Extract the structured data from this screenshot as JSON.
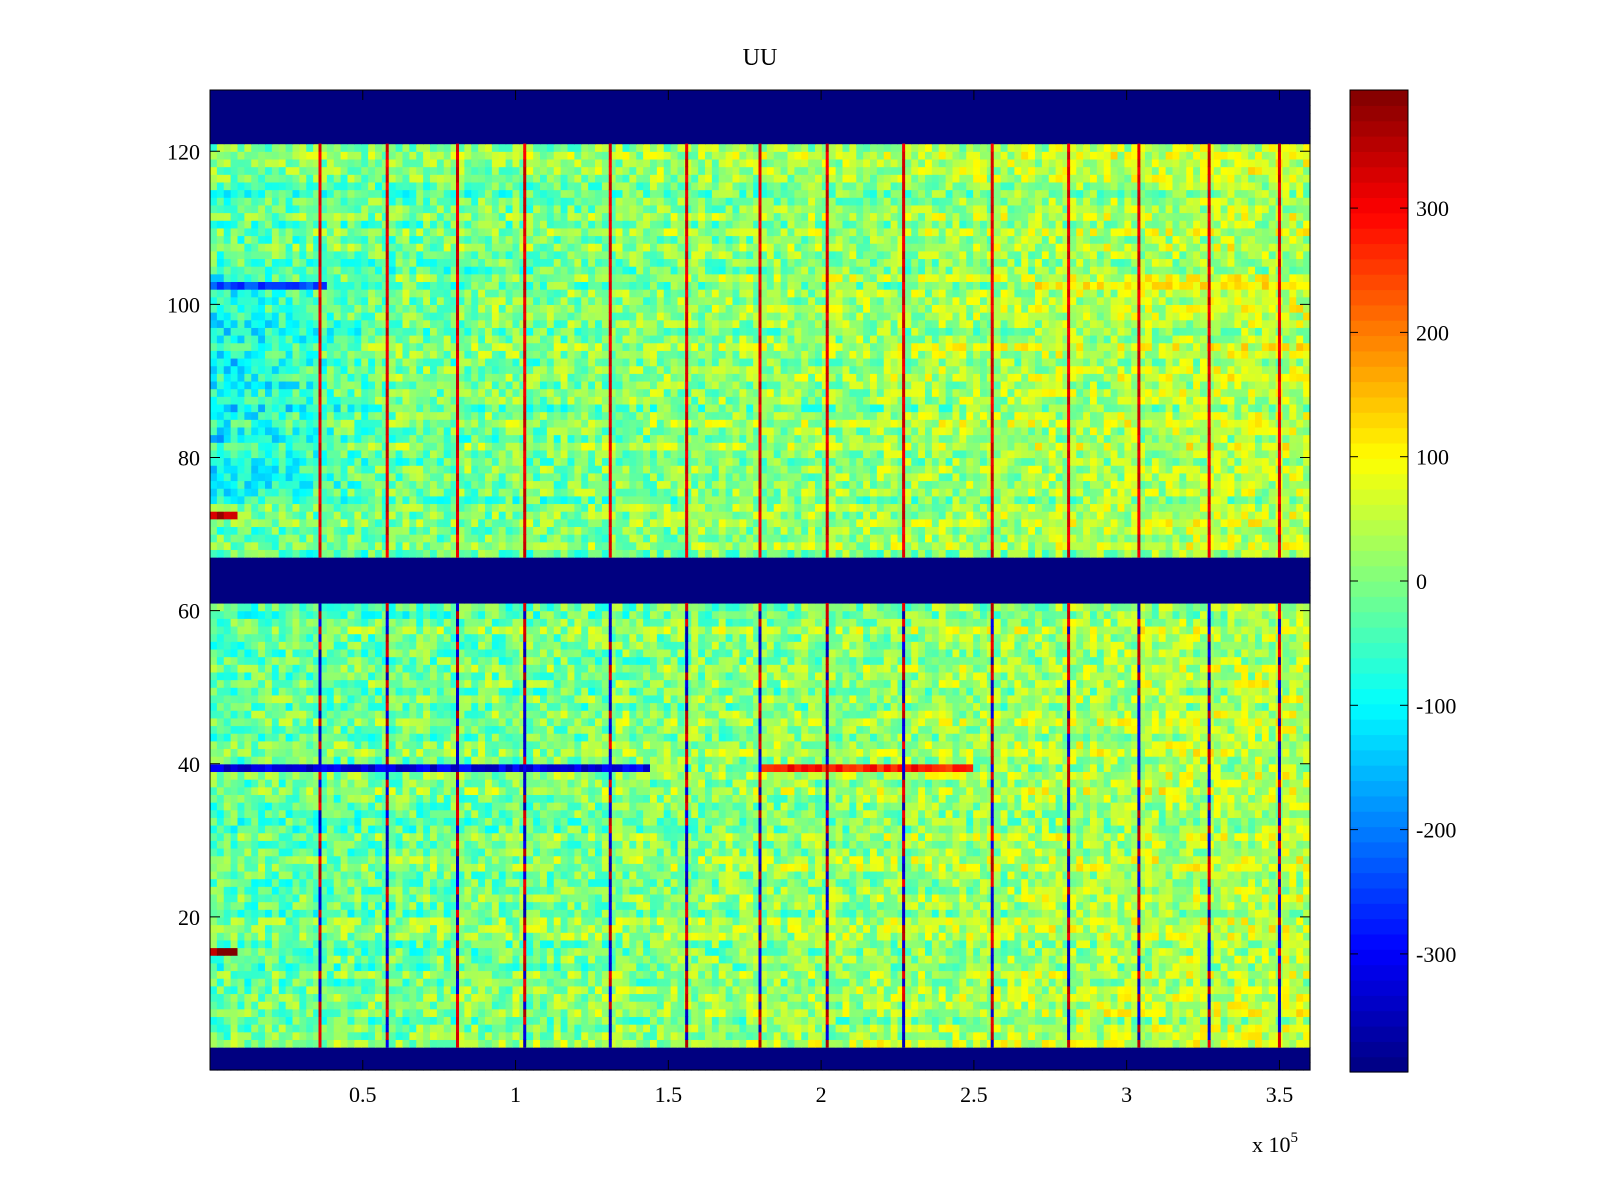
{
  "chart_data": {
    "type": "heatmap",
    "title": "UU",
    "xlabel": "",
    "ylabel": "",
    "x_exponent_label": "x 10",
    "x_exponent_power": "5",
    "xlim": [
      0,
      360000
    ],
    "ylim": [
      0,
      128
    ],
    "xticks": [
      {
        "value": 50000,
        "label": "0.5"
      },
      {
        "value": 100000,
        "label": "1"
      },
      {
        "value": 150000,
        "label": "1.5"
      },
      {
        "value": 200000,
        "label": "2"
      },
      {
        "value": 250000,
        "label": "2.5"
      },
      {
        "value": 300000,
        "label": "3"
      },
      {
        "value": 350000,
        "label": "3.5"
      }
    ],
    "yticks": [
      {
        "value": 20,
        "label": "20"
      },
      {
        "value": 40,
        "label": "40"
      },
      {
        "value": 60,
        "label": "60"
      },
      {
        "value": 80,
        "label": "80"
      },
      {
        "value": 100,
        "label": "100"
      },
      {
        "value": 120,
        "label": "120"
      }
    ],
    "colormap": "jet",
    "colorbar": {
      "clim": [
        -395,
        395
      ],
      "ticks": [
        {
          "value": 300,
          "label": "300"
        },
        {
          "value": 200,
          "label": "200"
        },
        {
          "value": 100,
          "label": "100"
        },
        {
          "value": 0,
          "label": "0"
        },
        {
          "value": -100,
          "label": "-100"
        },
        {
          "value": -200,
          "label": "-200"
        },
        {
          "value": -300,
          "label": "-300"
        }
      ]
    },
    "masked_row_bands": [
      {
        "from": 0,
        "to": 3,
        "value": -395
      },
      {
        "from": 61,
        "to": 67,
        "value": -395
      },
      {
        "from": 121,
        "to": 128,
        "value": -395
      }
    ],
    "vertical_artifact_columns_x": [
      36000,
      58000,
      81000,
      103000,
      131000,
      156000,
      180000,
      202000,
      227000,
      256000,
      281000,
      304000,
      327000,
      350000
    ],
    "horizontal_features": [
      {
        "row": 39,
        "x_from": 0,
        "x_to": 145000,
        "value": -320
      },
      {
        "row": 39,
        "x_from": 180000,
        "x_to": 250000,
        "value": 280
      },
      {
        "row": 15,
        "x_from": 0,
        "x_to": 10000,
        "value": 380
      },
      {
        "row": 72,
        "x_from": 0,
        "x_to": 8000,
        "value": 340
      },
      {
        "row": 102,
        "x_from": 0,
        "x_to": 38000,
        "value": -240
      },
      {
        "row": 102,
        "x_from": 270000,
        "x_to": 360000,
        "value": 110
      }
    ]
  }
}
